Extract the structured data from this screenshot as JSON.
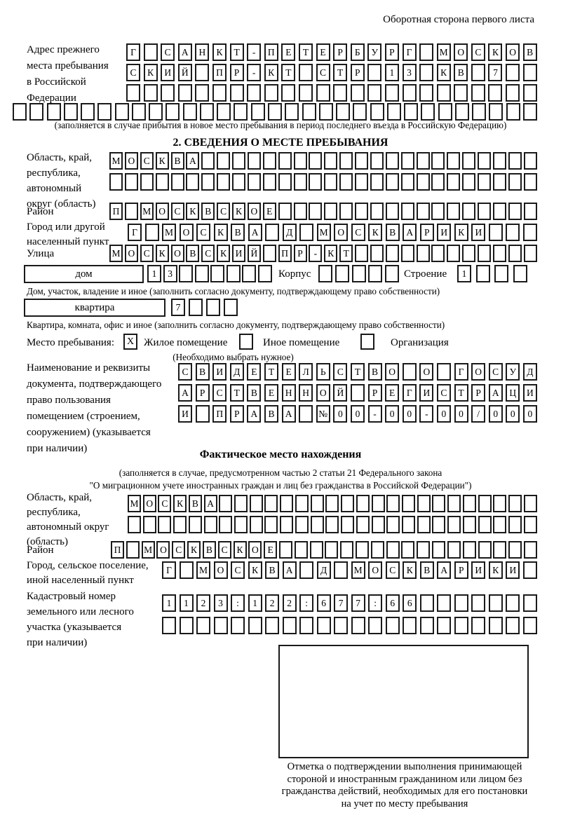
{
  "page": {
    "header_note": "Оборотная сторона первого листа"
  },
  "prev_address": {
    "label_lines": [
      "Адрес прежнего",
      "места пребывания",
      "в Российской",
      "Федерации"
    ],
    "rows": [
      {
        "len": 24,
        "text": "Г САНКТ-ПЕТЕРБУРГ МОСКОВ"
      },
      {
        "len": 24,
        "text": "СКИЙ ПР-КТ СТР 13 КВ 7"
      },
      {
        "len": 24,
        "text": ""
      },
      {
        "len": 31,
        "text": ""
      }
    ],
    "note": "(заполняется в случае прибытия в новое место пребывания в период последнего въезда в Российскую Федерацию)"
  },
  "section2": {
    "title": "2. СВЕДЕНИЯ О МЕСТЕ ПРЕБЫВАНИЯ",
    "region": {
      "label_lines": [
        "Область, край,",
        "республика,",
        "автономный",
        "округ (область)"
      ],
      "rows": [
        {
          "len": 28,
          "text": "МОСКВА"
        },
        {
          "len": 28,
          "text": ""
        }
      ]
    },
    "district": {
      "label": "Район",
      "row": {
        "len": 28,
        "text": "П МОСКВСКОЕ"
      }
    },
    "city": {
      "label_lines": [
        "Город или другой",
        "населенный пункт"
      ],
      "row": {
        "len": 24,
        "text": "Г МОСКВА Д МОСКВАРИКИ"
      }
    },
    "street": {
      "label": "Улица",
      "row": {
        "len": 28,
        "text": "МОСКОВСКИЙ ПР-КТ"
      }
    },
    "house": {
      "box_label": "дом",
      "cells": {
        "len": 8,
        "text": "13"
      },
      "korpus_label": "Корпус",
      "korpus_cells": {
        "len": 5,
        "text": ""
      },
      "stroenie_label": "Строение",
      "stroenie_cells": {
        "len": 4,
        "text": "1"
      },
      "note": "Дом, участок, владение и иное (заполнить согласно документу, подтверждающему право собственности)"
    },
    "apartment": {
      "box_label": "квартира",
      "cells": {
        "len": 4,
        "text": "7"
      },
      "note": "Квартира, комната, офис и иное (заполнить согласно документу, подтверждающему право собственности)"
    },
    "stay_type": {
      "label": "Место пребывания:",
      "options": [
        {
          "label": "Жилое помещение",
          "mark": "X"
        },
        {
          "label": "Иное помещение",
          "mark": ""
        },
        {
          "label": "Организация",
          "mark": ""
        }
      ],
      "note": "(Необходимо выбрать нужное)"
    },
    "document": {
      "label_lines": [
        "Наименование и реквизиты",
        "документа, подтверждающего",
        "право пользования",
        "помещением (строением,",
        "сооружением) (указывается",
        "при наличии)"
      ],
      "rows": [
        {
          "len": 21,
          "text": "СВИДЕТЕЛЬСТВО О ГОСУД"
        },
        {
          "len": 21,
          "text": "АРСТВЕННОЙ РЕГИСТРАЦИ"
        },
        {
          "len": 21,
          "text": "И ПРАВА №00-00-00/000"
        }
      ]
    }
  },
  "actual_location": {
    "title": "Фактическое место нахождения",
    "note_lines": [
      "(заполняется в случае, предусмотренном частью 2 статьи 21 Федерального закона",
      "\"О миграционном учете иностранных граждан и лиц без гражданства в Российской Федерации\")"
    ],
    "region": {
      "label_lines": [
        "Область, край,",
        "республика,",
        "автономный округ",
        "(область)"
      ],
      "rows": [
        {
          "len": 27,
          "text": "МОСКВА"
        },
        {
          "len": 27,
          "text": ""
        }
      ]
    },
    "district": {
      "label": "Район",
      "row": {
        "len": 28,
        "text": "П МОСКВСКОЕ"
      }
    },
    "city": {
      "label_lines": [
        "Город, сельское поселение,",
        "иной населенный пункт"
      ],
      "row": {
        "len": 22,
        "text": "Г МОСКВА Д МОСКВАРИКИ"
      }
    },
    "cadastral": {
      "label_lines": [
        "Кадастровый номер",
        "земельного или лесного",
        "участка (указывается",
        "при наличии)"
      ],
      "rows": [
        {
          "len": 22,
          "text": "1123:122:677:66"
        },
        {
          "len": 22,
          "text": ""
        }
      ]
    },
    "stamp_caption_lines": [
      "Отметка о подтверждении выполнения принимающей",
      "стороной и иностранным гражданином или лицом без",
      "гражданства действий, необходимых для его постановки",
      "на учет по месту пребывания"
    ]
  }
}
